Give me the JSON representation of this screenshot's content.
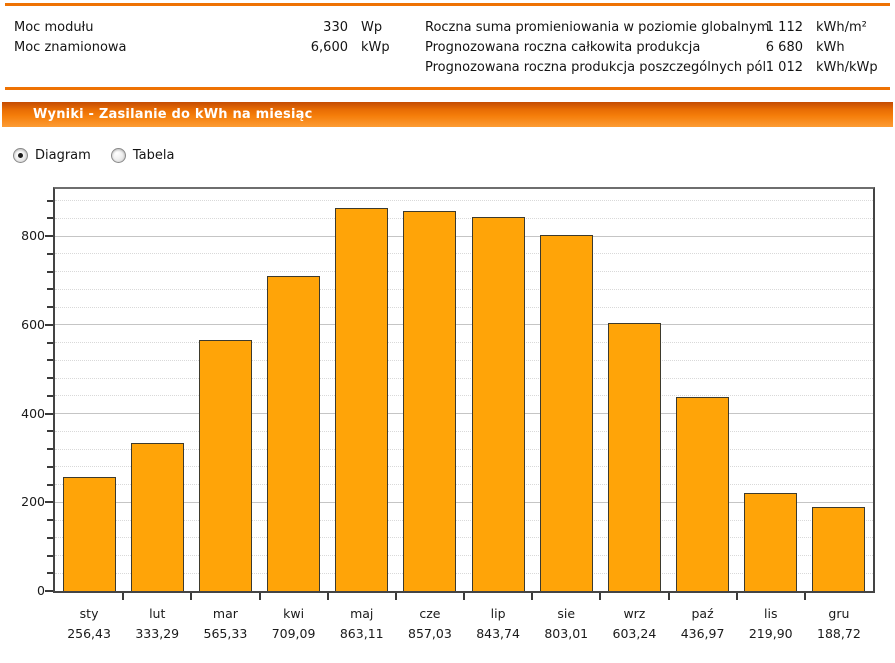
{
  "header": {
    "left_rows": [
      {
        "label": "Moc modułu",
        "value": "330",
        "unit": "Wp"
      },
      {
        "label": "Moc znamionowa",
        "value": "6,600",
        "unit": "kWp"
      }
    ],
    "right_rows": [
      {
        "label": "Roczna suma promieniowania w poziomie globalnym",
        "value": "1 112",
        "unit": "kWh/m²"
      },
      {
        "label": "Prognozowana roczna całkowita produkcja",
        "value": "6 680",
        "unit": "kWh"
      },
      {
        "label": "Prognozowana roczna produkcja poszczególnych pól",
        "value": "1 012",
        "unit": "kWh/kWp"
      }
    ]
  },
  "title_bar": {
    "text": "Wyniki - Zasilanie do kWh na miesiąc"
  },
  "view_toggle": {
    "options": [
      {
        "label": "Diagram",
        "selected": true
      },
      {
        "label": "Tabela",
        "selected": false
      }
    ]
  },
  "chart_data": {
    "type": "bar",
    "title": "",
    "xlabel": "",
    "ylabel": "",
    "categories": [
      "sty",
      "lut",
      "mar",
      "kwi",
      "maj",
      "cze",
      "lip",
      "sie",
      "wrz",
      "paź",
      "lis",
      "gru"
    ],
    "values": [
      256.43,
      333.29,
      565.33,
      709.09,
      863.11,
      857.03,
      843.74,
      803.01,
      603.24,
      436.97,
      219.9,
      188.72
    ],
    "value_labels": [
      "256,43",
      "333,29",
      "565,33",
      "709,09",
      "863,11",
      "857,03",
      "843,74",
      "803,01",
      "603,24",
      "436,97",
      "219,90",
      "188,72"
    ],
    "ylim": [
      0,
      906
    ],
    "ytick_major": 200,
    "ytick_minor": 40,
    "grid": true,
    "legend": "none",
    "bar_color": "#FFA408",
    "bar_border_color": "#3d3a2d"
  },
  "colors": {
    "accent_orange_rule": "#EE7203",
    "title_bar_gradient_top": "#C34B03",
    "title_bar_gradient_bottom": "#FC9C35",
    "bar_fill": "#FFA408",
    "bar_border": "#3D3A2D",
    "grid_major": "#C5C5C5",
    "grid_minor": "#D9D9D9",
    "axis": "#3A3A3A"
  }
}
